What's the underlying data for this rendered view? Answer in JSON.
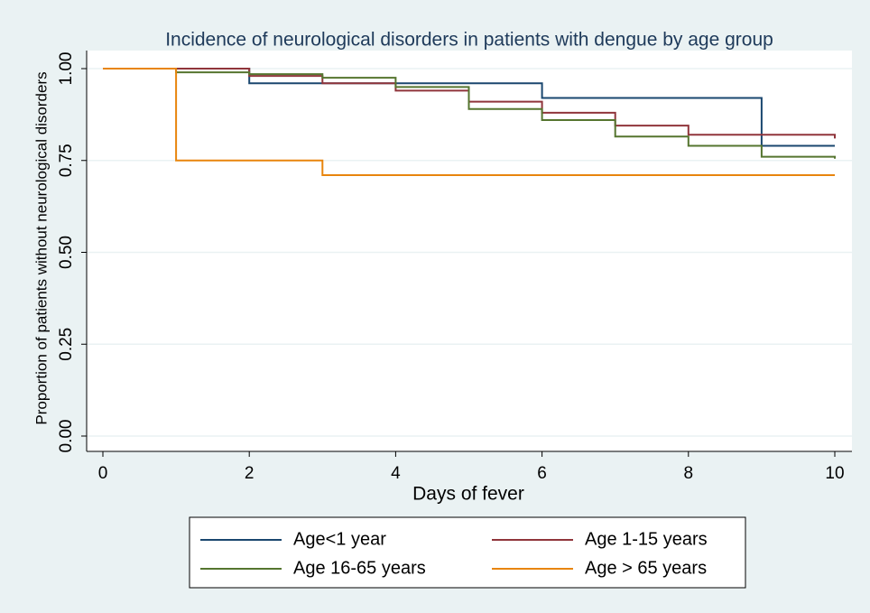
{
  "chart_data": {
    "type": "step",
    "title": "Incidence of neurological disorders in patients with dengue by age group",
    "x_label": "Days of fever",
    "y_label": "Proportion of patients without neurological disorders",
    "xlim": [
      0,
      10
    ],
    "xticks": [
      0,
      2,
      4,
      6,
      8,
      10
    ],
    "ylim": [
      0,
      1
    ],
    "yticks": [
      {
        "value": 0,
        "label": "0.00"
      },
      0.25,
      {
        "value": 0.5,
        "label": "0.50"
      },
      0.75,
      {
        "value": 1,
        "label": "1.00"
      }
    ],
    "grid": true,
    "legend": "bottom",
    "series": [
      {
        "name": "Age<1 year",
        "color": "#1a476f",
        "x": [
          0,
          2,
          6,
          9,
          10
        ],
        "values": [
          1,
          0.96,
          0.92,
          0.79,
          0.79
        ]
      },
      {
        "name": "Age 1-15 years",
        "color": "#90353b",
        "x": [
          0,
          2,
          3,
          4,
          5,
          6,
          7,
          8,
          10
        ],
        "values": [
          1,
          0.98,
          0.96,
          0.94,
          0.91,
          0.88,
          0.845,
          0.82,
          0.81
        ]
      },
      {
        "name": "Age 16-65 years",
        "color": "#55752f",
        "x": [
          0,
          1,
          2,
          3,
          4,
          5,
          6,
          7,
          8,
          9,
          10
        ],
        "values": [
          1,
          0.99,
          0.985,
          0.975,
          0.95,
          0.89,
          0.86,
          0.815,
          0.79,
          0.76,
          0.755
        ]
      },
      {
        "name": "Age > 65 years",
        "color": "#e8850d",
        "x": [
          0,
          1,
          3,
          10
        ],
        "values": [
          1,
          0.75,
          0.71,
          0.71
        ]
      }
    ]
  }
}
